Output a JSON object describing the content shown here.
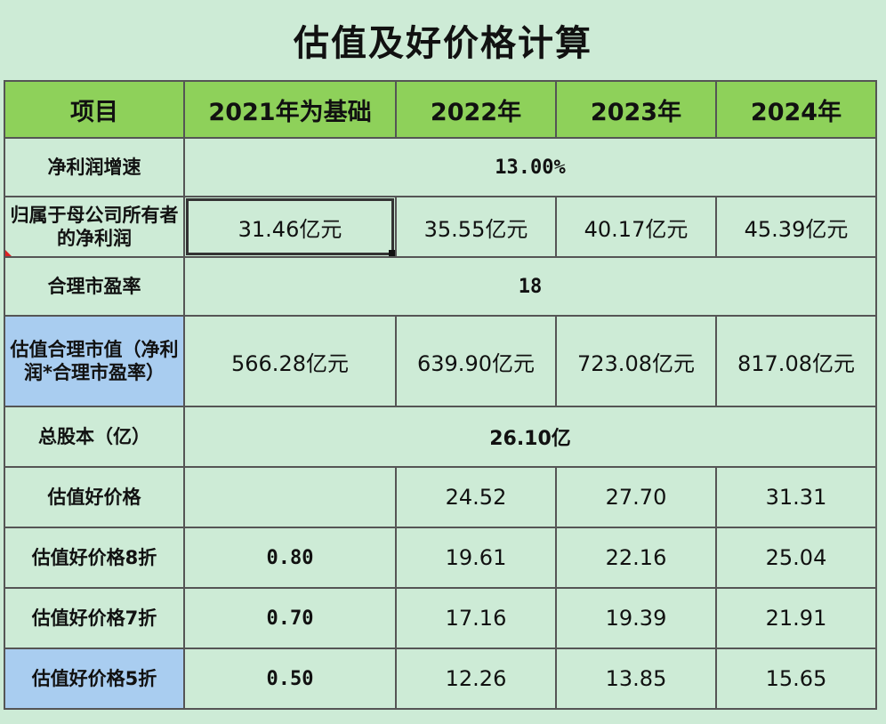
{
  "title": "估值及好价格计算",
  "header": [
    "项目",
    "2021年为基础",
    "2022年",
    "2023年",
    "2024年"
  ],
  "rows": {
    "growth": {
      "label": "净利润增速",
      "value": "13.00%"
    },
    "net_profit": {
      "label": "归属于母公司所有者的净利润",
      "values": [
        "31.46亿元",
        "35.55亿元",
        "40.17亿元",
        "45.39亿元"
      ]
    },
    "pe": {
      "label": "合理市盈率",
      "value": "18"
    },
    "market_value": {
      "label": "估值合理市值（净利润*合理市盈率）",
      "values": [
        "566.28亿元",
        "639.90亿元",
        "723.08亿元",
        "817.08亿元"
      ]
    },
    "shares": {
      "label": "总股本（亿）",
      "value": "26.10亿"
    },
    "good_price": {
      "label": "估值好价格",
      "values": [
        "",
        "24.52",
        "27.70",
        "31.31"
      ]
    },
    "price_80": {
      "label": "估值好价格8折",
      "values": [
        "0.80",
        "19.61",
        "22.16",
        "25.04"
      ]
    },
    "price_70": {
      "label": "估值好价格7折",
      "values": [
        "0.70",
        "17.16",
        "19.39",
        "21.91"
      ]
    },
    "price_50": {
      "label": "估值好价格5折",
      "values": [
        "0.50",
        "12.26",
        "13.85",
        "15.65"
      ]
    }
  },
  "colors": {
    "header_bg": "#8ed15a",
    "highlight_bg": "#a9cdf0",
    "sheet_bg": "#cdebd6"
  }
}
